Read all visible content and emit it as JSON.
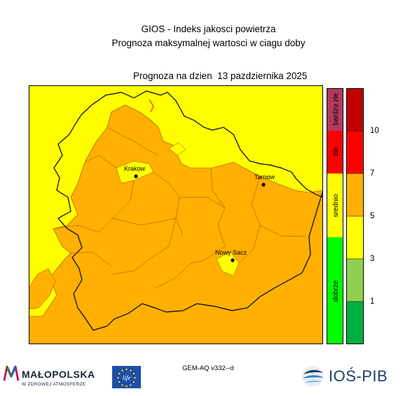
{
  "header": {
    "title_line1": "GIOS - Indeks jakosci powietrza",
    "title_line2": "Prognoza maksymalnej wartosci w ciagu doby",
    "subtitle": "Prognoza na dzien  13 pazdziernika 2025"
  },
  "map": {
    "cities": [
      {
        "name": "Krakow",
        "label": "Krakow"
      },
      {
        "name": "Tarnow",
        "label": "Tarnow"
      },
      {
        "name": "Nowy Sacz",
        "label": "Nowy Sacz"
      }
    ],
    "colors": {
      "yellow": "#ffff00",
      "orange": "#ffb000",
      "border_dark": "#000000",
      "border_region": "#a04000",
      "red_line": "#ff0000"
    }
  },
  "legend": {
    "categories": [
      {
        "label": "bardzo zle",
        "color": "#b23a5c"
      },
      {
        "label": "zle",
        "color": "#ff0000"
      },
      {
        "label": "srednio",
        "color": "#ffff00"
      },
      {
        "label": "dobrze",
        "color": "#00ff00"
      }
    ],
    "scale_colors": [
      "#00b040",
      "#90d050",
      "#ffff00",
      "#ffb000",
      "#ff0000",
      "#c00000"
    ],
    "ticks": [
      "10",
      "7",
      "5",
      "3",
      "1"
    ]
  },
  "footer": {
    "model": "GEM-AQ v332--d",
    "logo_malopolska": "MAŁOPOLSKA",
    "logo_malopolska_sub": "W ZDROWEJ ATMOSFERZE",
    "logo_eu": "life",
    "logo_ios": "IOŚ-PIB"
  }
}
